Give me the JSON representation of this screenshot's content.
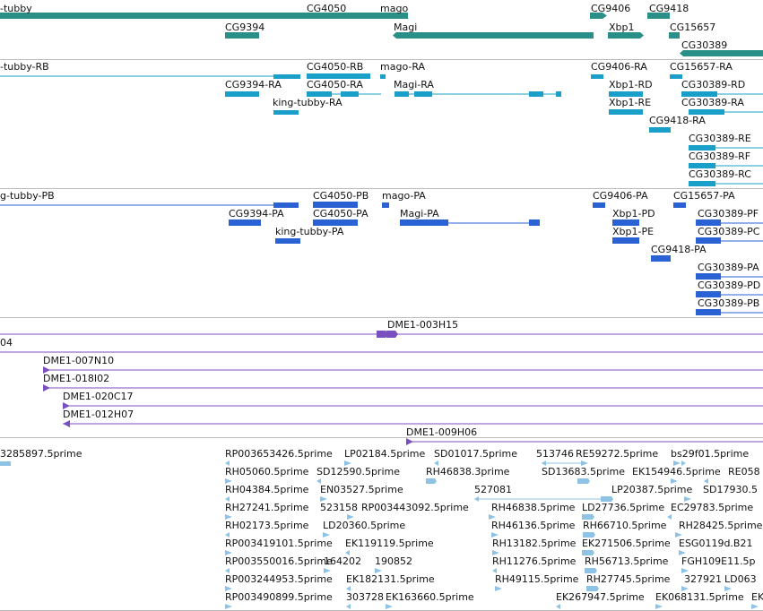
{
  "colors": {
    "gene": "#2a8f86",
    "transcript_rna": "#1aa0c8",
    "transcript_protein": "#2a62d4",
    "clone": "#7a4fbf",
    "est": "#8fc3e6",
    "separator": "#bdbdbd"
  },
  "gene_track": {
    "genes": [
      "-tubby",
      "CG4050",
      "mago",
      "CG9406",
      "CG9418",
      "CG9394",
      "Magi",
      "Xbp1",
      "CG15657",
      "CG30389"
    ]
  },
  "transcript_track": {
    "labels": [
      "-tubby-RB",
      "CG4050-RB",
      "mago-RA",
      "CG9406-RA",
      "CG15657-RA",
      "CG9394-RA",
      "CG4050-RA",
      "Magi-RA",
      "Xbp1-RD",
      "CG30389-RD",
      "king-tubby-RA",
      "Xbp1-RE",
      "CG30389-RA",
      "CG9418-RA",
      "CG30389-RE",
      "CG30389-RF",
      "CG30389-RC"
    ]
  },
  "protein_track": {
    "labels": [
      "g-tubby-PB",
      "CG4050-PB",
      "mago-PA",
      "CG9406-PA",
      "CG15657-PA",
      "CG9394-PA",
      "CG4050-PA",
      "Magi-PA",
      "Xbp1-PD",
      "CG30389-PF",
      "king-tubby-PA",
      "Xbp1-PE",
      "CG30389-PC",
      "CG9418-PA",
      "CG30389-PA",
      "CG30389-PD",
      "CG30389-PB"
    ]
  },
  "clone_track": {
    "labels": [
      "DME1-003H15",
      "04",
      "DME1-007N10",
      "DME1-018I02",
      "DME1-020C17",
      "DME1-012H07",
      "DME1-009H06"
    ]
  },
  "est_track": {
    "labels": [
      "3285897.5prime",
      "RP003653426.5prime",
      "LP02184.5prime",
      "SD01017.5prime",
      "513746",
      "RE59272.5prime",
      "bs29f01.5prime",
      "RH05060.5prime",
      "SD12590.5prime",
      "RH46838.3prime",
      "SD13683.5prime",
      "EK154946.5prime",
      "RE058",
      "RH04384.5prime",
      "EN03527.5prime",
      "527081",
      "LP20387.5prime",
      "SD17930.5",
      "RH27241.5prime",
      "523158",
      "RP003443092.5prime",
      "RH46838.5prime",
      "LD27736.5prime",
      "EC29783.5prime",
      "RH02173.5prime",
      "LD20360.5prime",
      "RH46136.5prime",
      "RH66710.5prime",
      "RH28425.5prime",
      "RP003419101.5prime",
      "EK119119.5prime",
      "RH13182.5prime",
      "EK271506.5prime",
      "ESG0119d.B21",
      "RP003550016.5prime",
      "164202",
      "190852",
      "RH11276.5prime",
      "RH56713.5prime",
      "FGH109E11.5p",
      "RP003244953.5prime",
      "EK182131.5prime",
      "RH49115.5prime",
      "RH27745.5prime",
      "327921",
      "LD063",
      "RP003490899.5prime",
      "303728",
      "EK163660.5prime",
      "EK267947.5prime",
      "EK068131.5prime",
      "EK"
    ]
  }
}
